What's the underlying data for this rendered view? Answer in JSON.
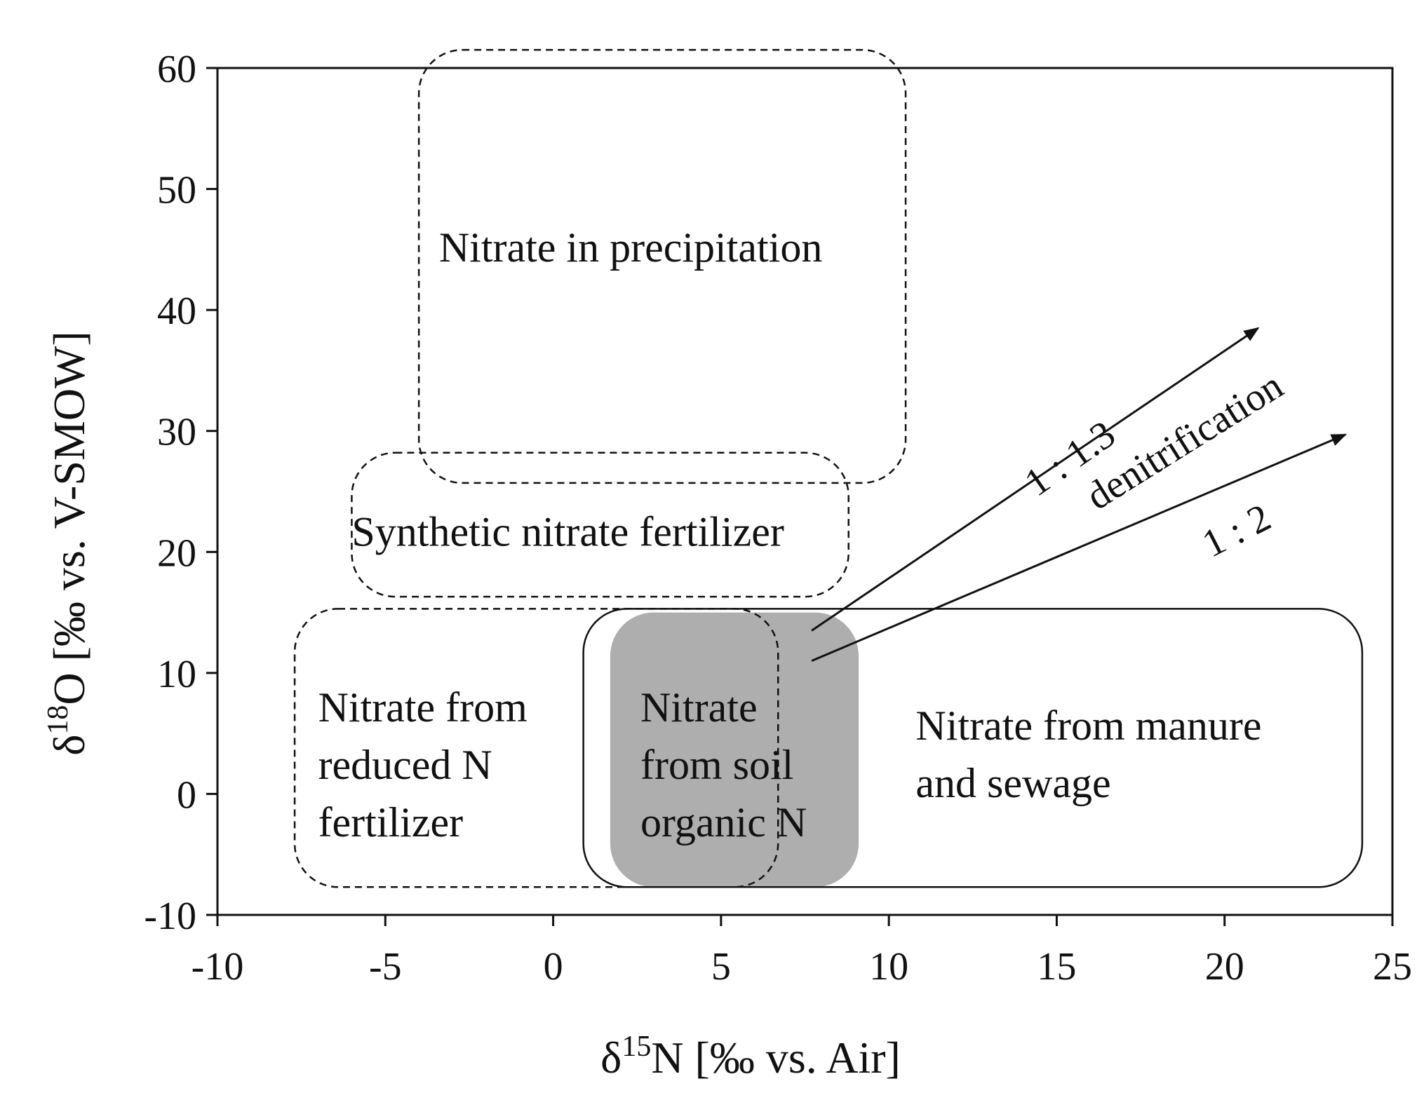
{
  "chart_data": {
    "type": "scatter",
    "title": "",
    "xlabel": {
      "prefix": "δ",
      "superscript": "15",
      "main": "N [‰ vs. Air]"
    },
    "ylabel": {
      "prefix": "δ",
      "superscript": "18",
      "main": "O [‰ vs. V-SMOW]"
    },
    "xlim": [
      -10,
      25
    ],
    "ylim": [
      -10,
      60
    ],
    "xticks": [
      -10,
      -5,
      0,
      5,
      10,
      15,
      20,
      25
    ],
    "yticks": [
      -10,
      0,
      10,
      20,
      30,
      40,
      50,
      60
    ],
    "xtick_labels": [
      "-10",
      "-5",
      "0",
      "5",
      "10",
      "15",
      "20",
      "25"
    ],
    "ytick_labels": [
      "-10",
      "0",
      "10",
      "20",
      "30",
      "40",
      "50",
      "60"
    ],
    "grid": false,
    "legend": "none",
    "regions": [
      {
        "label": "Nitrate in precipitation",
        "lines": [
          "Nitrate in precipitation"
        ],
        "x_range": [
          -4,
          10.5
        ],
        "y_range": [
          25.7,
          61.5
        ],
        "style": "dashed",
        "fill": "none",
        "label_at": [
          -3.4,
          44
        ]
      },
      {
        "label": "Synthetic nitrate fertilizer",
        "lines": [
          "Synthetic nitrate fertilizer"
        ],
        "x_range": [
          -6,
          8.8
        ],
        "y_range": [
          16.3,
          28.2
        ],
        "style": "dashed",
        "fill": "none",
        "label_at": [
          -6,
          20.5
        ]
      },
      {
        "label": "Nitrate from reduced N fertilizer",
        "lines": [
          "Nitrate from",
          "reduced N",
          "fertilizer"
        ],
        "x_range": [
          -7.7,
          6.7
        ],
        "y_range": [
          -7.7,
          15.3
        ],
        "style": "dashed",
        "fill": "none",
        "label_at": [
          -7,
          6
        ]
      },
      {
        "label": "Nitrate from manure and sewage",
        "lines": [
          "Nitrate from manure",
          "and sewage"
        ],
        "x_range": [
          0.9,
          24.1
        ],
        "y_range": [
          -7.7,
          15.3
        ],
        "style": "solid",
        "fill": "none",
        "label_at": [
          10.8,
          4.5
        ]
      },
      {
        "label": "Nitrate from soil organic N",
        "lines": [
          "Nitrate",
          "from soil",
          "organic N"
        ],
        "x_range": [
          1.7,
          9.1
        ],
        "y_range": [
          -7.7,
          15.0
        ],
        "style": "none",
        "fill": "#aeaeae",
        "label_at": [
          2.6,
          6
        ]
      }
    ],
    "arrows": [
      {
        "label": "1 : 1.3",
        "from": [
          7.7,
          13.5
        ],
        "to": [
          21,
          38.5
        ]
      },
      {
        "label": "1 : 2",
        "from": [
          7.7,
          11.0
        ],
        "to": [
          23.6,
          29.7
        ]
      }
    ],
    "annotations": [
      {
        "text": "1 : 1.3",
        "at": [
          14.4,
          24.5
        ],
        "rotation_deg": -35
      },
      {
        "text": "denitrification",
        "at": [
          16.2,
          23.4
        ],
        "rotation_deg": -32
      },
      {
        "text": "1 : 2",
        "at": [
          19.6,
          19.5
        ],
        "rotation_deg": -27
      }
    ]
  },
  "colors": {
    "axis": "#111111",
    "text": "#111111",
    "soil_fill": "#aeaeae",
    "background": "#ffffff"
  }
}
